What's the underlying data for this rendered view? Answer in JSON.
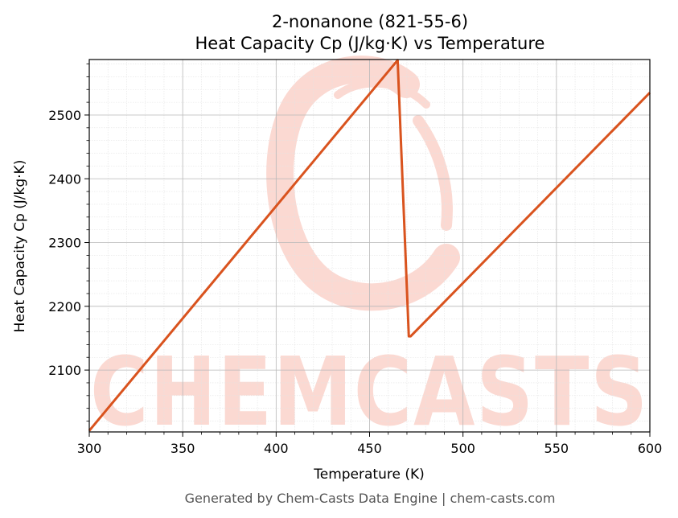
{
  "chart_data": {
    "type": "line",
    "title_line1": "2-nonanone (821-55-6)",
    "title_line2": "Heat Capacity Cp (J/kg·K) vs Temperature",
    "xlabel": "Temperature (K)",
    "ylabel": "Heat Capacity Cp (J/kg·K)",
    "xlim": [
      300,
      600
    ],
    "ylim": [
      2003,
      2587
    ],
    "xticks": [
      300,
      350,
      400,
      450,
      500,
      550,
      600
    ],
    "yticks": [
      2100,
      2200,
      2300,
      2400,
      2500
    ],
    "grid": true,
    "series": [
      {
        "color": "#d9531e",
        "x": [
          300,
          465,
          471,
          472,
          600
        ],
        "y": [
          2005,
          2586,
          2153,
          2153,
          2535
        ]
      }
    ]
  },
  "watermark": {
    "text": "CHEMCASTS",
    "color": "#fbd9d2"
  },
  "footer": {
    "text": "Generated by Chem-Casts Data Engine | chem-casts.com"
  }
}
